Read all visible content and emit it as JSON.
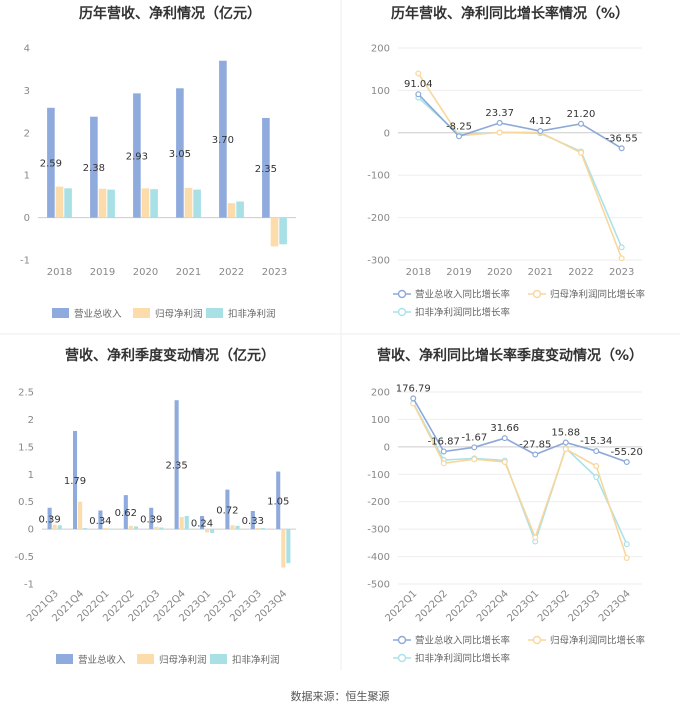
{
  "colors": {
    "revenue": "#8faadc",
    "net_profit": "#fcdcaa",
    "deducted_profit": "#a8e0e6",
    "revenue_line": "#8da9d8",
    "net_profit_line": "#f8d79c",
    "deducted_profit_line": "#a9e2e8",
    "axis": "#cccccc",
    "grid": "#eeeeee"
  },
  "source": "数据来源：恒生聚源",
  "chart_data": [
    {
      "id": "c1",
      "type": "bar",
      "title": "历年营收、净利情况（亿元）",
      "categories": [
        "2018",
        "2019",
        "2020",
        "2021",
        "2022",
        "2023"
      ],
      "ylim": [
        -1,
        4
      ],
      "yticks": [
        -1,
        0,
        1,
        2,
        3,
        4
      ],
      "series": [
        {
          "name": "营业总收入",
          "values": [
            2.59,
            2.38,
            2.93,
            3.05,
            3.7,
            2.35
          ],
          "labels": [
            "2.59",
            "2.38",
            "2.93",
            "3.05",
            "3.70",
            "2.35"
          ]
        },
        {
          "name": "归母净利润",
          "values": [
            0.73,
            0.68,
            0.69,
            0.7,
            0.34,
            -0.68
          ]
        },
        {
          "name": "扣非净利润",
          "values": [
            0.69,
            0.66,
            0.67,
            0.66,
            0.38,
            -0.63
          ]
        }
      ]
    },
    {
      "id": "c2",
      "type": "line",
      "title": "历年营收、净利同比增长率情况（%）",
      "categories": [
        "2018",
        "2019",
        "2020",
        "2021",
        "2022",
        "2023"
      ],
      "ylim": [
        -300,
        200
      ],
      "yticks": [
        -300,
        -200,
        -100,
        0,
        100,
        200
      ],
      "series": [
        {
          "name": "营业总收入同比增长率",
          "values": [
            91.04,
            -8.25,
            23.37,
            4.12,
            21.2,
            -36.55
          ],
          "labels": [
            "91.04",
            "-8.25",
            "23.37",
            "4.12",
            "21.20",
            "-36.55"
          ]
        },
        {
          "name": "归母净利润同比增长率",
          "values": [
            140,
            -7,
            1,
            1,
            -47,
            -296
          ]
        },
        {
          "name": "扣非净利润同比增长率",
          "values": [
            83,
            -4,
            1,
            -1,
            -44,
            -270
          ]
        }
      ]
    },
    {
      "id": "c3",
      "type": "bar",
      "title": "营收、净利季度变动情况（亿元）",
      "categories": [
        "2021Q3",
        "2021Q4",
        "2022Q1",
        "2022Q2",
        "2022Q3",
        "2022Q4",
        "2023Q1",
        "2023Q2",
        "2023Q3",
        "2023Q4"
      ],
      "ylim": [
        -1,
        2.5
      ],
      "yticks": [
        -1,
        -0.5,
        0,
        0.5,
        1,
        1.5,
        2,
        2.5
      ],
      "series": [
        {
          "name": "营业总收入",
          "values": [
            0.39,
            1.79,
            0.34,
            0.62,
            0.39,
            2.35,
            0.24,
            0.72,
            0.33,
            1.05
          ],
          "labels": [
            "0.39",
            "1.79",
            "0.34",
            "0.62",
            "0.39",
            "2.35",
            "0.24",
            "0.72",
            "0.33",
            "1.05"
          ]
        },
        {
          "name": "归母净利润",
          "values": [
            0.08,
            0.5,
            0.02,
            0.06,
            0.04,
            0.22,
            -0.06,
            0.07,
            0.02,
            -0.7
          ]
        },
        {
          "name": "扣非净利润",
          "values": [
            0.07,
            0.02,
            0.01,
            0.05,
            0.03,
            0.24,
            -0.07,
            0.06,
            0.02,
            -0.62
          ]
        }
      ]
    },
    {
      "id": "c4",
      "type": "line",
      "title": "营收、净利同比增长率季度变动情况（%）",
      "categories": [
        "2022Q1",
        "2022Q2",
        "2022Q3",
        "2022Q4",
        "2023Q1",
        "2023Q2",
        "2023Q3",
        "2023Q4"
      ],
      "ylim": [
        -500,
        200
      ],
      "yticks": [
        -500,
        -400,
        -300,
        -200,
        -100,
        0,
        100,
        200
      ],
      "series": [
        {
          "name": "营业总收入同比增长率",
          "values": [
            176.79,
            -16.87,
            -1.67,
            31.66,
            -27.85,
            15.88,
            -15.34,
            -55.2
          ],
          "labels": [
            "176.79",
            "-16.87",
            "-1.67",
            "31.66",
            "-27.85",
            "15.88",
            "-15.34",
            "-55.20"
          ]
        },
        {
          "name": "归母净利润同比增长率",
          "values": [
            158,
            -60,
            -45,
            -55,
            -330,
            -8,
            -70,
            -405
          ]
        },
        {
          "name": "扣非净利润同比增长率",
          "values": [
            160,
            -48,
            -42,
            -50,
            -345,
            -5,
            -110,
            -355
          ]
        }
      ]
    }
  ]
}
